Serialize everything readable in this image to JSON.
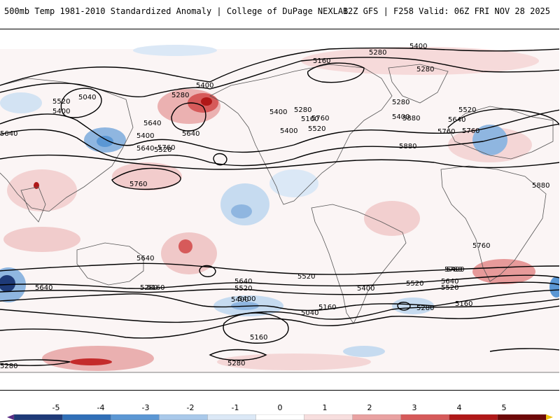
{
  "header": {
    "title": "500mb Temp 1981-2010 Standardized Anomaly | College of DuPage NEXLAB",
    "run_info": "12Z GFS | F258 Valid: 06Z FRI NOV 28 2025"
  },
  "map": {
    "contour_labels": [
      "5400",
      "5280",
      "5160",
      "5280",
      "5040",
      "5280",
      "5400",
      "5400",
      "5520",
      "5640",
      "5400",
      "5280",
      "5160",
      "5640",
      "5760",
      "5520",
      "5400",
      "5640",
      "5760",
      "5400",
      "5280",
      "5640",
      "5520",
      "5760",
      "5400",
      "5520",
      "5640",
      "5760",
      "5880",
      "5880",
      "5880",
      "5760",
      "5760",
      "5640",
      "5520",
      "5400",
      "5640",
      "5520",
      "5400",
      "5160",
      "5640",
      "5520",
      "5280",
      "5400",
      "5040",
      "5160",
      "5280",
      "5160",
      "5280",
      "5160",
      "5400",
      "5520",
      "5640",
      "5760",
      "5280"
    ],
    "colors": {
      "warm_light": "#f4d6d6",
      "warm_mid": "#e79a9a",
      "warm_strong": "#c42b2b",
      "cool_light": "#d3e3f3",
      "cool_mid": "#8fb6e0",
      "cool_strong": "#2f6fb8",
      "land_outline": "#555555",
      "contour": "#000000"
    }
  },
  "colorbar": {
    "ticks": [
      "-5",
      "-4",
      "-3",
      "-2",
      "-1",
      "0",
      "1",
      "2",
      "3",
      "4",
      "5"
    ],
    "colors": [
      "#5a2d86",
      "#1e3a78",
      "#2f6fb8",
      "#5b97d4",
      "#a9c9ea",
      "#dbe8f6",
      "#ffffff",
      "#f7dede",
      "#e9a2a2",
      "#d65a5a",
      "#b01818",
      "#6d0808",
      "#f0c010"
    ]
  }
}
